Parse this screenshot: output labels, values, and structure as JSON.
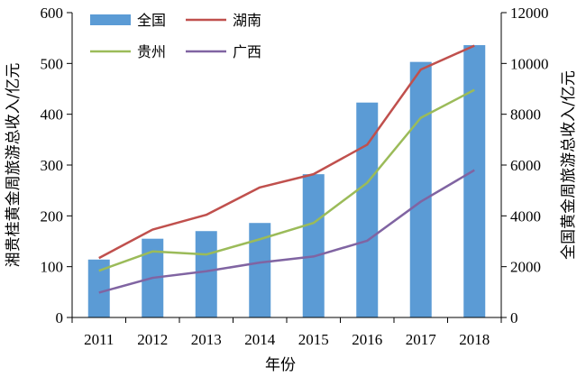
{
  "chart_data": {
    "type": "bar+line",
    "x": [
      "2011",
      "2012",
      "2013",
      "2014",
      "2015",
      "2016",
      "2017",
      "2018"
    ],
    "xlabel": "年份",
    "ylabel_left": "湘贵桂黄金周旅游总收入/亿元",
    "ylabel_right": "全国黄金周旅游总收入/亿元",
    "ylim_left": [
      0,
      600
    ],
    "ylim_right": [
      0,
      12000
    ],
    "yticks_left": [
      "0",
      "100",
      "200",
      "300",
      "400",
      "500",
      "600"
    ],
    "yticks_right": [
      "0",
      "2000",
      "4000",
      "6000",
      "8000",
      "10000",
      "12000"
    ],
    "legend_position": "top-left",
    "grid": false,
    "bars": {
      "name": "全国",
      "axis": "right",
      "color": "#5b9bd5",
      "values": [
        2280,
        3100,
        3400,
        3720,
        5640,
        8460,
        10060,
        10720
      ]
    },
    "series": [
      {
        "name": "湖南",
        "axis": "left",
        "color": "#c0504d",
        "values": [
          117,
          173,
          202,
          256,
          282,
          340,
          488,
          535
        ]
      },
      {
        "name": "贵州",
        "axis": "left",
        "color": "#9bbb59",
        "values": [
          92,
          130,
          124,
          154,
          186,
          265,
          393,
          448
        ]
      },
      {
        "name": "广西",
        "axis": "left",
        "color": "#8064a2",
        "values": [
          49,
          78,
          91,
          108,
          120,
          151,
          228,
          290
        ]
      }
    ]
  }
}
